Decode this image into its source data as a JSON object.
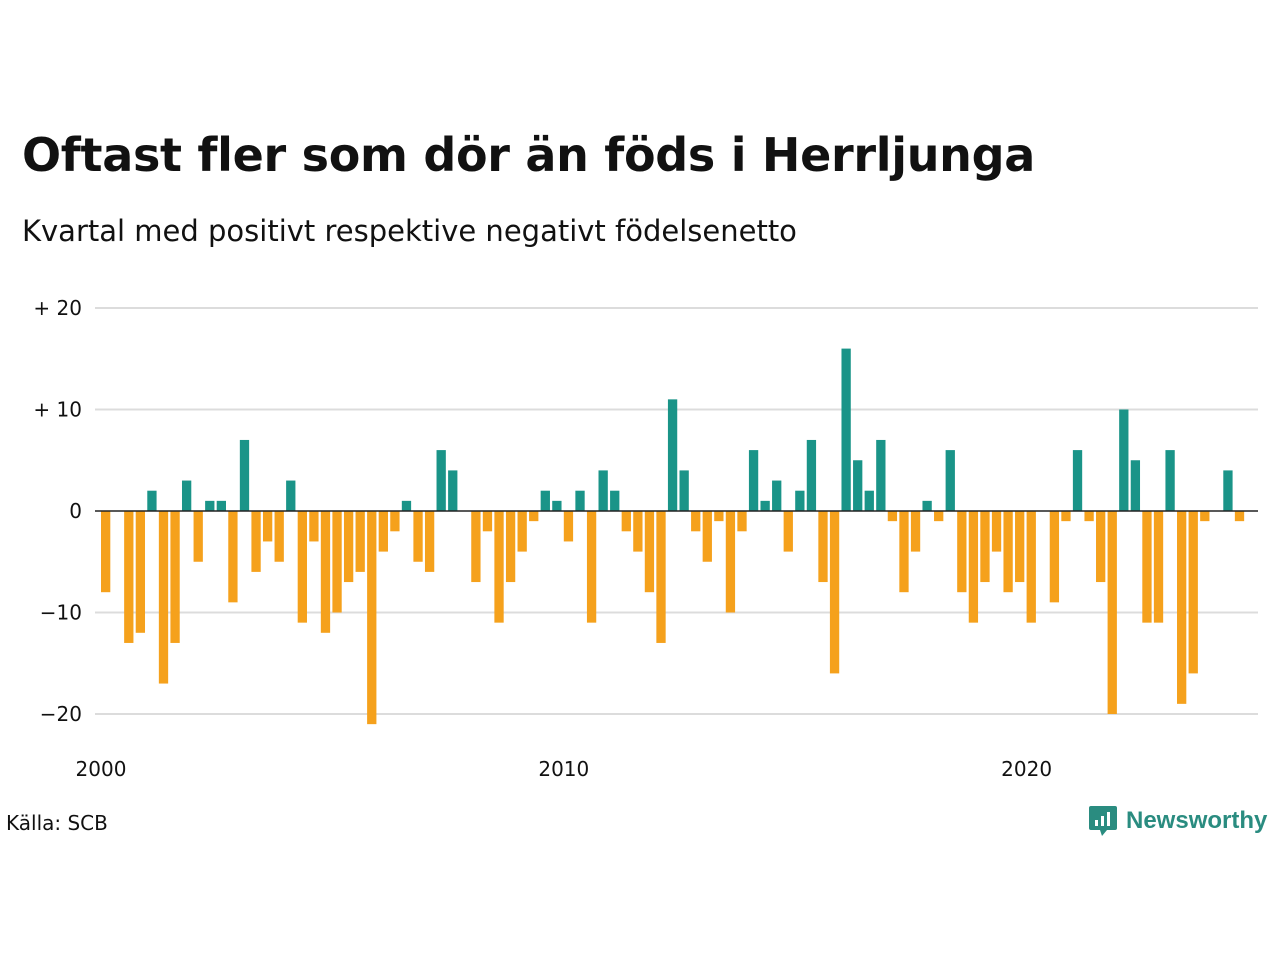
{
  "title": "Oftast fler som dör än föds i Herrljunga",
  "subtitle": "Kvartal med positivt respektive negativt födelsenetto",
  "source": "Källa: SCB",
  "brand": "Newsworthy",
  "colors": {
    "positive": "#1a9488",
    "negative": "#f5a11c",
    "grid": "#dcdcdc",
    "brand": "#2a8c80"
  },
  "chart_data": {
    "type": "bar",
    "xlabel": "",
    "ylabel": "",
    "ylim": [
      -22,
      20
    ],
    "yticks": [
      {
        "value": 20,
        "label": "+ 20"
      },
      {
        "value": 10,
        "label": "+ 10"
      },
      {
        "value": 0,
        "label": "0"
      },
      {
        "value": -10,
        "label": "−10"
      },
      {
        "value": -20,
        "label": "−20"
      }
    ],
    "xticks": [
      {
        "value": 2000,
        "label": "2000"
      },
      {
        "value": 2010,
        "label": "2010"
      },
      {
        "value": 2020,
        "label": "2020"
      }
    ],
    "grid": true,
    "legend": "none",
    "start_year": 2000,
    "quarters_per_year": 4,
    "values": [
      -8,
      0,
      -13,
      -12,
      2,
      -17,
      -13,
      3,
      -5,
      1,
      1,
      -9,
      7,
      -6,
      -3,
      -5,
      3,
      -11,
      -3,
      -12,
      -10,
      -7,
      -6,
      -21,
      -4,
      -2,
      1,
      -5,
      -6,
      6,
      4,
      0,
      -7,
      -2,
      -11,
      -7,
      -4,
      -1,
      2,
      1,
      -3,
      2,
      -11,
      4,
      2,
      -2,
      -4,
      -8,
      -13,
      11,
      4,
      -2,
      -5,
      -1,
      -10,
      -2,
      6,
      1,
      3,
      -4,
      2,
      7,
      -7,
      -16,
      16,
      5,
      2,
      7,
      -1,
      -8,
      -4,
      1,
      -1,
      6,
      -8,
      -11,
      -7,
      -4,
      -8,
      -7,
      -11,
      0,
      -9,
      -1,
      6,
      -1,
      -7,
      -20,
      10,
      5,
      -11,
      -11,
      6,
      -19,
      -16,
      -1,
      0,
      4,
      -1
    ]
  }
}
